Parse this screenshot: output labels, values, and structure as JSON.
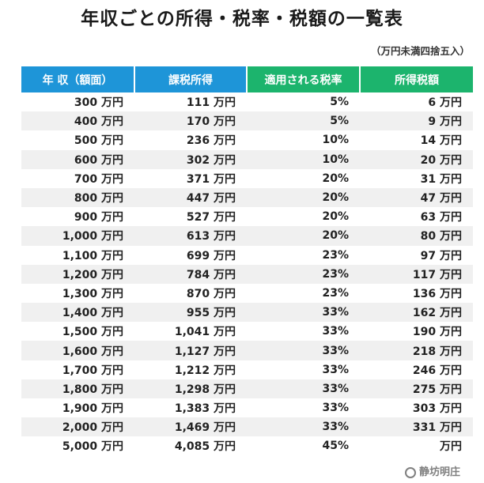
{
  "title": "年収ごとの所得・税率・税額の一覧表",
  "note": "（万円未満四捨五入）",
  "headers": {
    "income": "年 収（額面）",
    "taxable": "課税所得",
    "rate": "適用される税率",
    "tax": "所得税額"
  },
  "colors": {
    "header_blue": "#1e95d8",
    "header_green": "#1cb46d",
    "stripe": "#f0f0f0"
  },
  "rows": [
    {
      "income": "300 万円",
      "taxable": "111 万円",
      "rate": "5%",
      "tax": "6 万円"
    },
    {
      "income": "400 万円",
      "taxable": "170 万円",
      "rate": "5%",
      "tax": "9 万円"
    },
    {
      "income": "500 万円",
      "taxable": "236 万円",
      "rate": "10%",
      "tax": "14 万円"
    },
    {
      "income": "600 万円",
      "taxable": "302 万円",
      "rate": "10%",
      "tax": "20 万円"
    },
    {
      "income": "700 万円",
      "taxable": "371 万円",
      "rate": "20%",
      "tax": "31 万円"
    },
    {
      "income": "800 万円",
      "taxable": "447 万円",
      "rate": "20%",
      "tax": "47 万円"
    },
    {
      "income": "900 万円",
      "taxable": "527 万円",
      "rate": "20%",
      "tax": "63 万円"
    },
    {
      "income": "1,000 万円",
      "taxable": "613 万円",
      "rate": "20%",
      "tax": "80 万円"
    },
    {
      "income": "1,100 万円",
      "taxable": "699 万円",
      "rate": "23%",
      "tax": "97 万円"
    },
    {
      "income": "1,200 万円",
      "taxable": "784 万円",
      "rate": "23%",
      "tax": "117 万円"
    },
    {
      "income": "1,300 万円",
      "taxable": "870 万円",
      "rate": "23%",
      "tax": "136 万円"
    },
    {
      "income": "1,400 万円",
      "taxable": "955 万円",
      "rate": "33%",
      "tax": "162 万円"
    },
    {
      "income": "1,500 万円",
      "taxable": "1,041 万円",
      "rate": "33%",
      "tax": "190 万円"
    },
    {
      "income": "1,600 万円",
      "taxable": "1,127 万円",
      "rate": "33%",
      "tax": "218 万円"
    },
    {
      "income": "1,700 万円",
      "taxable": "1,212 万円",
      "rate": "33%",
      "tax": "246 万円"
    },
    {
      "income": "1,800 万円",
      "taxable": "1,298 万円",
      "rate": "33%",
      "tax": "275 万円"
    },
    {
      "income": "1,900 万円",
      "taxable": "1,383 万円",
      "rate": "33%",
      "tax": "303 万円"
    },
    {
      "income": "2,000 万円",
      "taxable": "1,469 万円",
      "rate": "33%",
      "tax": "331 万円"
    },
    {
      "income": "5,000 万円",
      "taxable": "4,085 万円",
      "rate": "45%",
      "tax": "万円"
    }
  ],
  "watermark": {
    "icon": "wechat-icon",
    "text": "静坊明庄"
  }
}
